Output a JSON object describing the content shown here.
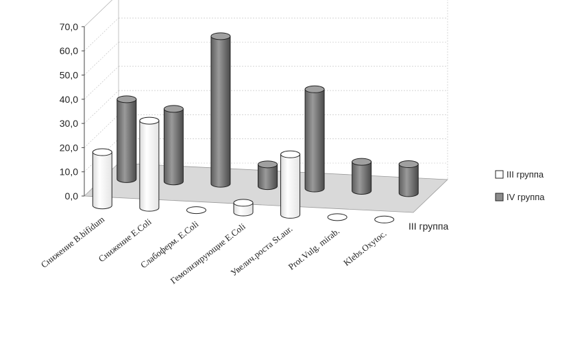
{
  "chart_data": {
    "type": "bar",
    "subtype": "3d-cylinder",
    "title": "",
    "xlabel": "",
    "ylabel": "",
    "ylim": [
      0,
      70
    ],
    "y_ticks": [
      "0,0",
      "10,0",
      "20,0",
      "30,0",
      "40,0",
      "50,0",
      "60,0",
      "70,0"
    ],
    "categories": [
      "Снижение B.bifidum",
      "Снижение E.Coli",
      "Слабоферм. E.Coli",
      "Гемолизирующие E.Coli",
      "Увелич.роста St.aur.",
      "Prot.Vulg. mirab.",
      "Klebs.Oxytoc."
    ],
    "depth_label": "III группа",
    "grid": true,
    "legend_position": "right",
    "series": [
      {
        "name": "III группа",
        "color": "#ffffff",
        "values": [
          22,
          36,
          0,
          4,
          25,
          0,
          0
        ]
      },
      {
        "name": "IV группа",
        "color": "#8c8c8c",
        "values": [
          33,
          30,
          61,
          9,
          41,
          12,
          12
        ]
      }
    ]
  }
}
